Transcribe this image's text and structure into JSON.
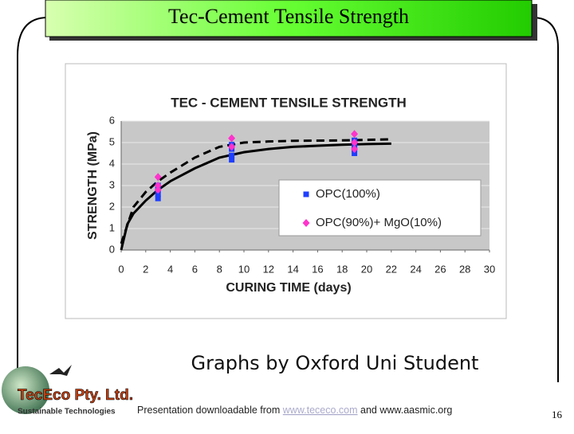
{
  "slide_title": "Tec-Cement Tensile Strength",
  "chart_data": {
    "type": "scatter",
    "title": "TEC - CEMENT TENSILE STRENGTH",
    "x_label": "CURING TIME (days)",
    "y_label": "STRENGTH (MPa)",
    "xlim": [
      0,
      30
    ],
    "xticks": [
      0,
      2,
      4,
      6,
      8,
      10,
      12,
      14,
      16,
      18,
      20,
      22,
      24,
      26,
      28,
      30
    ],
    "ylim": [
      0,
      6
    ],
    "yticks": [
      0,
      1,
      2,
      3,
      4,
      5,
      6
    ],
    "grid": true,
    "series": [
      {
        "name": "OPC(100%)",
        "color": "#1f3fff",
        "marker": "square",
        "x": [
          3,
          3,
          3,
          3,
          9,
          9,
          9,
          9,
          19,
          19,
          19,
          19
        ],
        "values": [
          2.4,
          2.6,
          2.8,
          3.0,
          4.2,
          4.4,
          4.7,
          4.9,
          4.5,
          4.7,
          4.9,
          5.1
        ]
      },
      {
        "name": "OPC(90%)+ MgO(10%)",
        "color": "#ff33cc",
        "marker": "diamond",
        "x": [
          3,
          3,
          3,
          9,
          9,
          19,
          19,
          19
        ],
        "values": [
          2.8,
          3.0,
          3.4,
          4.8,
          5.2,
          4.7,
          5.0,
          5.4
        ]
      }
    ],
    "trendlines": [
      {
        "color": "#000000",
        "style": "solid",
        "x": [
          0,
          0.5,
          1,
          2,
          3,
          4,
          6,
          8,
          10,
          12,
          14,
          16,
          18,
          20,
          22
        ],
        "values": [
          0,
          1.2,
          1.7,
          2.3,
          2.8,
          3.2,
          3.8,
          4.3,
          4.55,
          4.7,
          4.8,
          4.85,
          4.9,
          4.93,
          4.95
        ]
      },
      {
        "color": "#000000",
        "style": "dashed",
        "x": [
          0,
          1,
          2,
          3,
          4,
          6,
          8,
          10,
          12,
          14,
          18,
          22
        ],
        "values": [
          0.3,
          2.0,
          2.7,
          3.2,
          3.6,
          4.3,
          4.8,
          5.0,
          5.05,
          5.08,
          5.1,
          5.15
        ]
      }
    ]
  },
  "caption": "Graphs by Oxford Uni Student",
  "logo": {
    "name": "TecEco Pty. Ltd.",
    "tagline": "Sustainable Technologies"
  },
  "footer": {
    "prefix": "Presentation downloadable from",
    "link": "www.tececo.com",
    "suffix": "and www.aasmic.org"
  },
  "page_number": "16"
}
